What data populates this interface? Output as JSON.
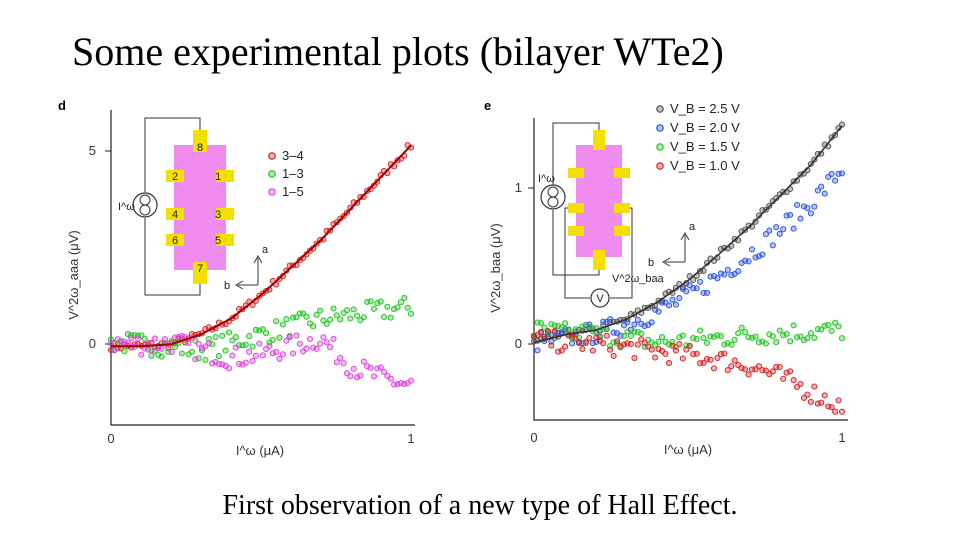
{
  "title": "Some experimental plots (bilayer WTe2)",
  "caption": "First observation of a new type of Hall Effect.",
  "colors": {
    "red": "#d62020",
    "green": "#22c322",
    "magenta": "#e040e0",
    "black": "#505050",
    "blue": "#2a52e0",
    "hallbar": "#f08cf0",
    "pad": "#f3e000"
  },
  "chart_data": [
    {
      "type": "scatter",
      "panel": "d",
      "xlabel": "I^ω (μA)",
      "ylabel": "V^2ω_aaa (μV)",
      "xlim": [
        0,
        1
      ],
      "ylim": [
        -2,
        6
      ],
      "xticks": [
        "0",
        "1"
      ],
      "yticks": [
        "0",
        "5"
      ],
      "inset": {
        "pads": [
          "8",
          "2",
          "1",
          "4",
          "3",
          "6",
          "5",
          "7"
        ],
        "source_label": "I^ω",
        "axis_a": "a",
        "axis_b": "b"
      },
      "series": [
        {
          "name": "3–4",
          "color": "red",
          "x": [
            0,
            0.1,
            0.2,
            0.3,
            0.4,
            0.5,
            0.6,
            0.7,
            0.8,
            0.9,
            1.0
          ],
          "y": [
            0,
            0,
            0.05,
            0.3,
            0.7,
            1.3,
            2.0,
            2.7,
            3.5,
            4.3,
            5.1
          ],
          "fit": true
        },
        {
          "name": "1–3",
          "color": "green",
          "x": [
            0,
            0.1,
            0.2,
            0.3,
            0.4,
            0.5,
            0.6,
            0.7,
            0.8,
            0.9,
            1.0
          ],
          "y": [
            0.1,
            0.05,
            0.0,
            -0.1,
            0.1,
            0.3,
            0.5,
            0.7,
            0.8,
            0.9,
            1.0
          ]
        },
        {
          "name": "1–5",
          "color": "magenta",
          "x": [
            0,
            0.1,
            0.2,
            0.3,
            0.4,
            0.5,
            0.6,
            0.7,
            0.8,
            0.9,
            1.0
          ],
          "y": [
            0.1,
            0.05,
            0.1,
            -0.1,
            -0.3,
            -0.2,
            0.0,
            0.2,
            -0.5,
            -0.8,
            -1.0
          ]
        }
      ]
    },
    {
      "type": "scatter",
      "panel": "e",
      "xlabel": "I^ω (μA)",
      "ylabel": "V^2ω_baa (μV)",
      "xlim": [
        0,
        1
      ],
      "ylim": [
        -0.5,
        1.45
      ],
      "xticks": [
        "0",
        "1"
      ],
      "yticks": [
        "0",
        "1"
      ],
      "inset": {
        "source_label": "I^ω",
        "meter_label": "V",
        "voltage_label": "V^2ω_baa",
        "axis_a": "a",
        "axis_b": "b"
      },
      "series": [
        {
          "name": "V_B = 2.5 V",
          "color": "black",
          "x": [
            0,
            0.1,
            0.2,
            0.3,
            0.4,
            0.5,
            0.6,
            0.7,
            0.8,
            0.9,
            1.0
          ],
          "y": [
            0.0,
            0.05,
            0.08,
            0.15,
            0.26,
            0.4,
            0.57,
            0.75,
            0.95,
            1.15,
            1.4
          ],
          "fit": true
        },
        {
          "name": "V_B = 2.0 V",
          "color": "blue",
          "x": [
            0,
            0.1,
            0.2,
            0.3,
            0.4,
            0.5,
            0.6,
            0.7,
            0.8,
            0.9,
            1.0
          ],
          "y": [
            0.0,
            0.03,
            0.06,
            0.12,
            0.2,
            0.3,
            0.43,
            0.57,
            0.73,
            0.9,
            1.12
          ]
        },
        {
          "name": "V_B = 1.5 V",
          "color": "green",
          "x": [
            0,
            0.1,
            0.2,
            0.3,
            0.4,
            0.5,
            0.6,
            0.7,
            0.8,
            0.9,
            1.0
          ],
          "y": [
            0.08,
            0.06,
            0.05,
            0.03,
            0.0,
            0.01,
            0.03,
            0.05,
            0.06,
            0.07,
            0.08
          ]
        },
        {
          "name": "V_B = 1.0 V",
          "color": "red",
          "x": [
            0,
            0.1,
            0.2,
            0.3,
            0.4,
            0.5,
            0.6,
            0.7,
            0.8,
            0.9,
            1.0
          ],
          "y": [
            0.02,
            0.0,
            -0.01,
            -0.03,
            -0.06,
            -0.08,
            -0.11,
            -0.15,
            -0.22,
            -0.32,
            -0.42
          ]
        }
      ]
    }
  ]
}
